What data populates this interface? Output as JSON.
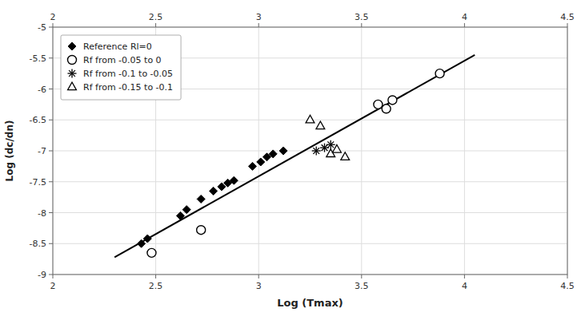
{
  "chart_data": {
    "type": "scatter",
    "title": "",
    "xlabel": "Log (Tmax)",
    "ylabel": "Log (dc/dn)",
    "xlim": [
      2.0,
      4.5
    ],
    "ylim": [
      -9.0,
      -5.0
    ],
    "xticks": [
      2,
      2.5,
      3,
      3.5,
      4,
      4.5
    ],
    "yticks": [
      -9,
      -8.5,
      -8,
      -7.5,
      -7,
      -6.5,
      -6,
      -5.5,
      -5
    ],
    "grid": true,
    "legend": "upper-left",
    "series": [
      {
        "name": "Reference Rl=0",
        "color": "#000000",
        "marker": "diamond",
        "x": [
          2.43,
          2.46,
          2.62,
          2.65,
          2.72,
          2.78,
          2.82,
          2.85,
          2.88,
          2.97,
          3.01,
          3.04,
          3.07,
          3.12
        ],
        "values": [
          -8.5,
          -8.42,
          -8.05,
          -7.95,
          -7.78,
          -7.65,
          -7.58,
          -7.52,
          -7.48,
          -7.25,
          -7.18,
          -7.1,
          -7.05,
          -7.0
        ]
      },
      {
        "name": "Rf from -0.05 to 0",
        "color": "#000000",
        "marker": "circle",
        "x": [
          2.48,
          2.72,
          3.58,
          3.62,
          3.65,
          3.88
        ],
        "values": [
          -8.65,
          -8.28,
          -6.25,
          -6.32,
          -6.18,
          -5.75
        ]
      },
      {
        "name": "Rf from -0.1 to -0.05",
        "color": "#000000",
        "marker": "asterisk",
        "x": [
          3.28,
          3.32,
          3.35
        ],
        "values": [
          -7.0,
          -6.95,
          -6.9
        ]
      },
      {
        "name": "Rf from -0.15 to -0.1",
        "color": "#000000",
        "marker": "triangle",
        "x": [
          3.25,
          3.3,
          3.35,
          3.38,
          3.42
        ],
        "values": [
          -6.5,
          -6.6,
          -7.05,
          -6.98,
          -7.1
        ]
      },
      {
        "type": "line",
        "color": "#000000",
        "x": [
          2.3,
          4.05
        ],
        "values": [
          -8.72,
          -5.45
        ]
      }
    ]
  }
}
